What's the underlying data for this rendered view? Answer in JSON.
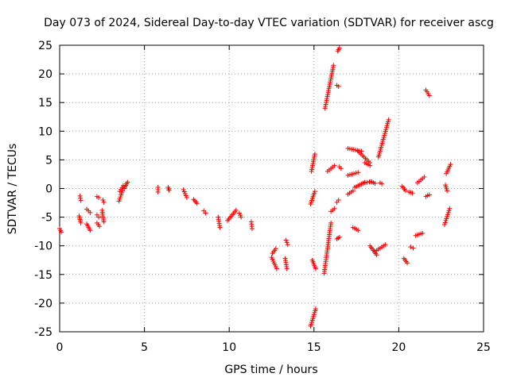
{
  "chart_data": {
    "type": "scatter",
    "title": "Day 073 of 2024, Sidereal Day-to-day VTEC variation (SDTVAR) for receiver ascg",
    "xlabel": "GPS time / hours",
    "ylabel": "SDTVAR / TECUs",
    "xlim": [
      0,
      25
    ],
    "ylim": [
      -25,
      25
    ],
    "xticks": [
      0,
      5,
      10,
      15,
      20,
      25
    ],
    "yticks": [
      -25,
      -20,
      -15,
      -10,
      -5,
      0,
      5,
      10,
      15,
      20,
      25
    ],
    "grid": true,
    "marker": "plus",
    "color": "#ff0000",
    "segments": [
      {
        "x": [
          0.0,
          0.1
        ],
        "y": [
          -7.0,
          -7.6
        ]
      },
      {
        "x": [
          1.2,
          1.25
        ],
        "y": [
          -1.3,
          -2.1
        ]
      },
      {
        "x": [
          1.15,
          1.25
        ],
        "y": [
          -4.8,
          -6.0
        ]
      },
      {
        "x": [
          1.6,
          1.8
        ],
        "y": [
          -3.6,
          -4.2
        ]
      },
      {
        "x": [
          1.6,
          1.8
        ],
        "y": [
          -6.2,
          -7.3
        ]
      },
      {
        "x": [
          2.2,
          2.3
        ],
        "y": [
          -1.4,
          -1.6
        ]
      },
      {
        "x": [
          2.2,
          2.3
        ],
        "y": [
          -4.6,
          -5.0
        ]
      },
      {
        "x": [
          2.2,
          2.35
        ],
        "y": [
          -6.0,
          -6.6
        ]
      },
      {
        "x": [
          2.55,
          2.6
        ],
        "y": [
          -2.0,
          -2.4
        ]
      },
      {
        "x": [
          2.5,
          2.6
        ],
        "y": [
          -3.8,
          -5.8
        ]
      },
      {
        "x": [
          3.5,
          3.7
        ],
        "y": [
          -2.2,
          -0.4
        ]
      },
      {
        "x": [
          3.55,
          3.75
        ],
        "y": [
          -0.5,
          0.5
        ]
      },
      {
        "x": [
          3.8,
          4.0
        ],
        "y": [
          0.0,
          1.1
        ]
      },
      {
        "x": [
          5.8,
          5.8
        ],
        "y": [
          0.2,
          -0.6
        ]
      },
      {
        "x": [
          6.4,
          6.45
        ],
        "y": [
          0.2,
          -0.3
        ]
      },
      {
        "x": [
          7.3,
          7.5
        ],
        "y": [
          -0.2,
          -1.6
        ]
      },
      {
        "x": [
          7.9,
          8.1
        ],
        "y": [
          -1.9,
          -2.6
        ]
      },
      {
        "x": [
          8.5,
          8.6
        ],
        "y": [
          -3.9,
          -4.3
        ]
      },
      {
        "x": [
          9.35,
          9.45
        ],
        "y": [
          -5.0,
          -6.8
        ]
      },
      {
        "x": [
          9.9,
          10.4
        ],
        "y": [
          -5.6,
          -3.8
        ]
      },
      {
        "x": [
          10.6,
          10.7
        ],
        "y": [
          -4.3,
          -5.0
        ]
      },
      {
        "x": [
          11.3,
          11.35
        ],
        "y": [
          -5.8,
          -7.0
        ]
      },
      {
        "x": [
          12.5,
          12.8
        ],
        "y": [
          -12.0,
          -14.0
        ]
      },
      {
        "x": [
          12.55,
          12.75
        ],
        "y": [
          -11.3,
          -10.5
        ]
      },
      {
        "x": [
          13.35,
          13.45
        ],
        "y": [
          -9.0,
          -9.8
        ]
      },
      {
        "x": [
          13.3,
          13.4
        ],
        "y": [
          -12.2,
          -14.0
        ]
      },
      {
        "x": [
          14.8,
          15.1
        ],
        "y": [
          -24.0,
          -21.0
        ]
      },
      {
        "x": [
          14.8,
          15.05
        ],
        "y": [
          -2.7,
          -0.5
        ]
      },
      {
        "x": [
          14.85,
          15.05
        ],
        "y": [
          3.0,
          6.0
        ]
      },
      {
        "x": [
          14.9,
          15.1
        ],
        "y": [
          -12.5,
          -14.0
        ]
      },
      {
        "x": [
          15.6,
          16.0
        ],
        "y": [
          -14.8,
          -6.0
        ]
      },
      {
        "x": [
          15.65,
          16.15
        ],
        "y": [
          14.0,
          21.5
        ]
      },
      {
        "x": [
          15.8,
          16.2
        ],
        "y": [
          3.0,
          4.0
        ]
      },
      {
        "x": [
          16.0,
          16.2
        ],
        "y": [
          -4.0,
          -3.5
        ]
      },
      {
        "x": [
          16.35,
          16.45
        ],
        "y": [
          18.0,
          17.8
        ]
      },
      {
        "x": [
          16.35,
          16.45
        ],
        "y": [
          -2.4,
          -2.0
        ]
      },
      {
        "x": [
          16.35,
          16.5
        ],
        "y": [
          -8.8,
          -8.5
        ]
      },
      {
        "x": [
          16.4,
          16.5
        ],
        "y": [
          24.0,
          24.5
        ]
      },
      {
        "x": [
          16.5,
          16.6
        ],
        "y": [
          3.8,
          3.5
        ]
      },
      {
        "x": [
          17.0,
          17.8
        ],
        "y": [
          7.0,
          6.5
        ]
      },
      {
        "x": [
          17.6,
          18.3
        ],
        "y": [
          6.5,
          4.5
        ]
      },
      {
        "x": [
          17.0,
          17.3
        ],
        "y": [
          -1.0,
          -0.4
        ]
      },
      {
        "x": [
          17.0,
          17.6
        ],
        "y": [
          2.3,
          2.8
        ]
      },
      {
        "x": [
          17.4,
          18.0
        ],
        "y": [
          0.2,
          1.1
        ]
      },
      {
        "x": [
          17.3,
          17.6
        ],
        "y": [
          -6.8,
          -7.3
        ]
      },
      {
        "x": [
          18.0,
          18.4
        ],
        "y": [
          1.0,
          1.2
        ]
      },
      {
        "x": [
          18.0,
          18.3
        ],
        "y": [
          4.5,
          4.0
        ]
      },
      {
        "x": [
          18.3,
          18.6
        ],
        "y": [
          1.2,
          0.9
        ]
      },
      {
        "x": [
          18.3,
          18.7
        ],
        "y": [
          -10.0,
          -11.6
        ]
      },
      {
        "x": [
          18.6,
          19.2
        ],
        "y": [
          -11.0,
          -9.8
        ]
      },
      {
        "x": [
          18.8,
          19.4
        ],
        "y": [
          5.5,
          12.0
        ]
      },
      {
        "x": [
          18.9,
          19.0
        ],
        "y": [
          1.0,
          0.8
        ]
      },
      {
        "x": [
          20.2,
          20.4
        ],
        "y": [
          0.4,
          -0.4
        ]
      },
      {
        "x": [
          20.3,
          20.5
        ],
        "y": [
          -12.2,
          -13.0
        ]
      },
      {
        "x": [
          20.6,
          20.8
        ],
        "y": [
          -0.6,
          -0.8
        ]
      },
      {
        "x": [
          20.7,
          20.85
        ],
        "y": [
          -10.2,
          -10.4
        ]
      },
      {
        "x": [
          21.0,
          21.4
        ],
        "y": [
          -8.2,
          -7.8
        ]
      },
      {
        "x": [
          21.1,
          21.5
        ],
        "y": [
          1.0,
          2.0
        ]
      },
      {
        "x": [
          21.6,
          21.8
        ],
        "y": [
          17.2,
          16.2
        ]
      },
      {
        "x": [
          21.6,
          21.8
        ],
        "y": [
          -1.4,
          -1.1
        ]
      },
      {
        "x": [
          22.7,
          23.0
        ],
        "y": [
          -6.3,
          -3.5
        ]
      },
      {
        "x": [
          22.75,
          22.85
        ],
        "y": [
          0.6,
          -0.4
        ]
      },
      {
        "x": [
          22.8,
          23.05
        ],
        "y": [
          2.6,
          4.2
        ]
      }
    ]
  }
}
